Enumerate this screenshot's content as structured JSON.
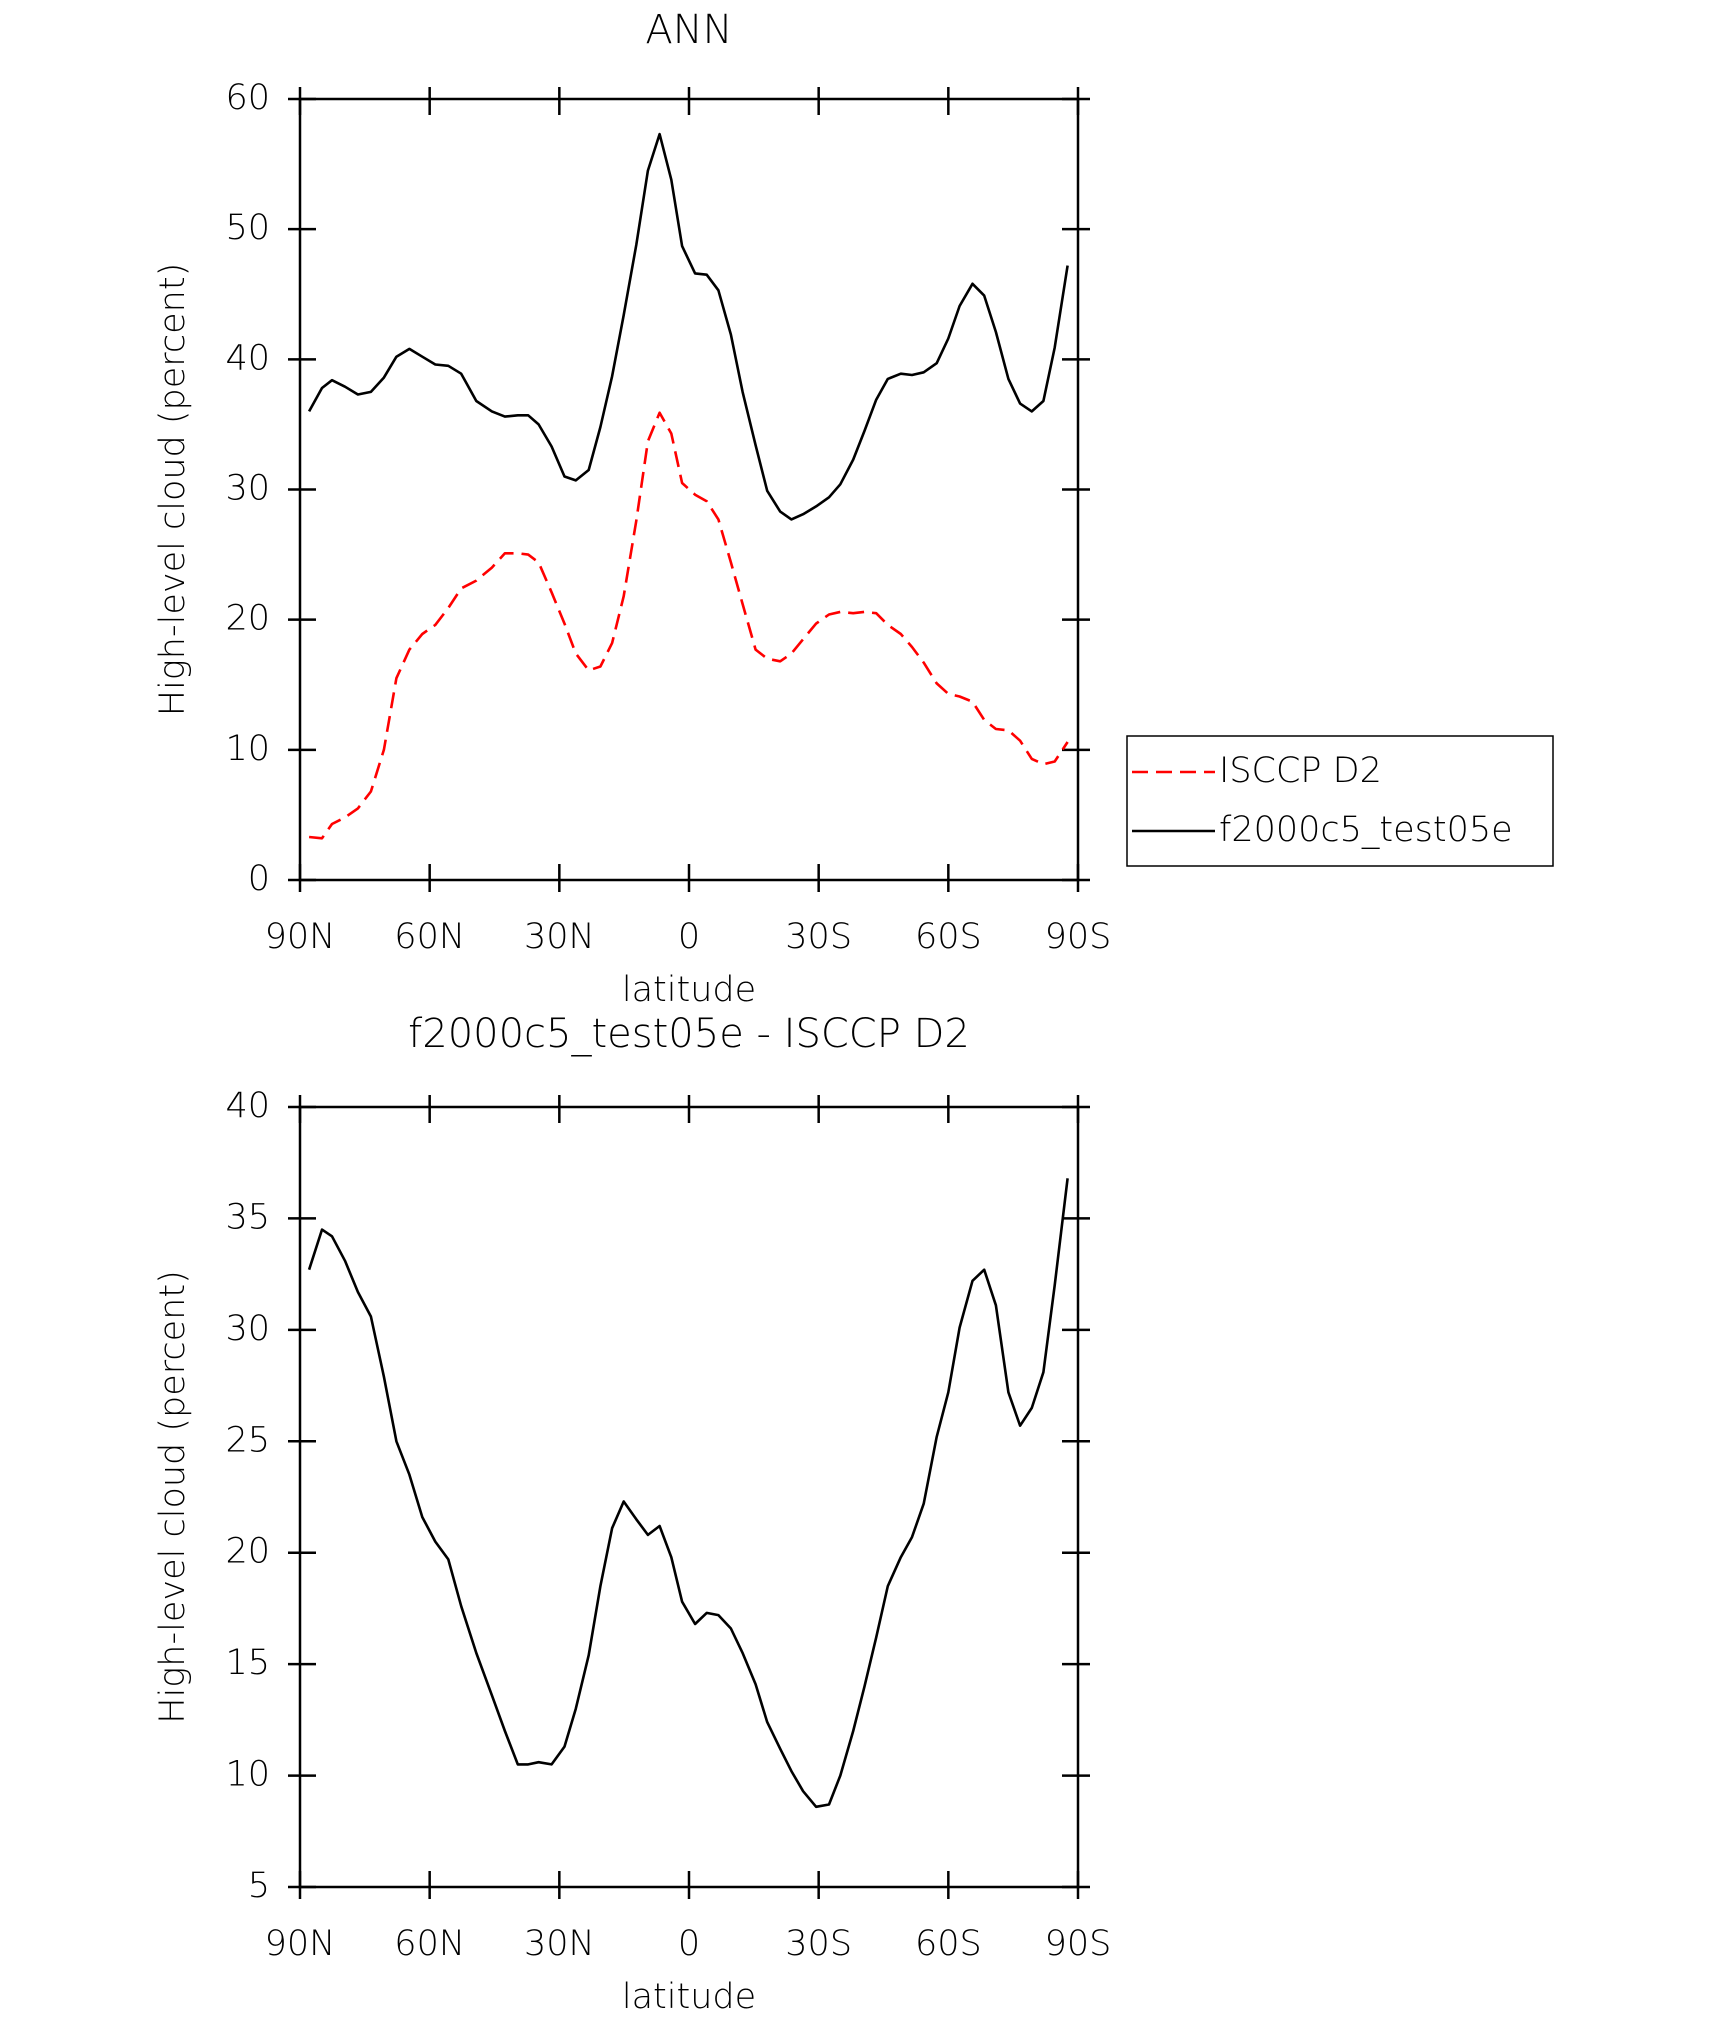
{
  "chart_data": [
    {
      "type": "line",
      "title": "ANN",
      "xlabel": "latitude",
      "ylabel": "High-level cloud (percent)",
      "x": [
        87.9,
        84.9,
        82.6,
        79.6,
        76.6,
        73.6,
        70.6,
        67.7,
        64.7,
        61.7,
        58.7,
        55.7,
        52.7,
        49.2,
        45.6,
        42.6,
        39.6,
        37.2,
        34.8,
        31.8,
        28.8,
        26.2,
        23.2,
        20.5,
        17.8,
        15.1,
        12.2,
        9.5,
        6.8,
        4.1,
        1.6,
        -1.4,
        -4.1,
        -6.8,
        -9.7,
        -12.4,
        -15.4,
        -18.1,
        -21.1,
        -23.7,
        -26.4,
        -29.4,
        -32.4,
        -35.0,
        -38.0,
        -40.6,
        -43.3,
        -46.0,
        -49.0,
        -51.6,
        -54.3,
        -57.3,
        -60.0,
        -62.6,
        -65.6,
        -68.3,
        -71.0,
        -73.9,
        -76.6,
        -79.3,
        -82.0,
        -84.6,
        -87.6
      ],
      "xlim": [
        90,
        -90
      ],
      "xticks": [
        {
          "value": 90,
          "label": "90N"
        },
        {
          "value": 60,
          "label": "60N"
        },
        {
          "value": 30,
          "label": "30N"
        },
        0,
        {
          "value": -30,
          "label": "30S"
        },
        {
          "value": -60,
          "label": "60S"
        },
        {
          "value": -90,
          "label": "90S"
        }
      ],
      "ylim": [
        0,
        60
      ],
      "yticks": [
        0,
        10,
        20,
        30,
        40,
        50,
        60
      ],
      "legend": "right",
      "series": [
        {
          "name": "ISCCP D2",
          "color": "#ff0000",
          "line_style": "dashed",
          "values": [
            3.3,
            3.2,
            4.3,
            4.8,
            5.5,
            6.8,
            10.0,
            15.5,
            17.7,
            18.9,
            19.6,
            20.9,
            22.4,
            23.0,
            24.0,
            25.1,
            25.1,
            25.0,
            24.4,
            22.1,
            19.7,
            17.4,
            16.1,
            16.4,
            18.2,
            21.8,
            27.6,
            33.7,
            35.9,
            34.3,
            30.5,
            29.6,
            29.1,
            27.7,
            24.4,
            21.2,
            17.7,
            17.0,
            16.8,
            17.4,
            18.5,
            19.7,
            20.4,
            20.6,
            20.5,
            20.6,
            20.5,
            19.6,
            18.9,
            17.9,
            16.7,
            15.1,
            14.3,
            14.1,
            13.7,
            12.3,
            11.6,
            11.5,
            10.7,
            9.3,
            8.9,
            9.1,
            10.6
          ]
        },
        {
          "name": "f2000c5_test05e",
          "color": "#000000",
          "line_style": "solid",
          "values": [
            36.0,
            37.8,
            38.4,
            37.9,
            37.3,
            37.5,
            38.6,
            40.2,
            40.8,
            40.2,
            39.6,
            39.5,
            38.9,
            36.8,
            36.0,
            35.6,
            35.7,
            35.7,
            35.0,
            33.3,
            31.0,
            30.7,
            31.5,
            34.8,
            38.7,
            43.4,
            48.8,
            54.5,
            57.3,
            53.8,
            48.7,
            46.6,
            46.5,
            45.3,
            41.9,
            37.5,
            33.4,
            29.9,
            28.3,
            27.7,
            28.1,
            28.7,
            29.4,
            30.4,
            32.3,
            34.5,
            36.9,
            38.5,
            38.9,
            38.8,
            39.0,
            39.7,
            41.6,
            44.1,
            45.8,
            44.9,
            42.1,
            38.5,
            36.6,
            36.0,
            36.8,
            40.9,
            47.2
          ]
        }
      ]
    },
    {
      "type": "line",
      "title": "f2000c5_test05e - ISCCP D2",
      "xlabel": "latitude",
      "ylabel": "High-level cloud (percent)",
      "x": [
        87.9,
        84.9,
        82.6,
        79.6,
        76.6,
        73.6,
        70.6,
        67.7,
        64.7,
        61.7,
        58.7,
        55.7,
        52.7,
        49.2,
        45.6,
        42.6,
        39.6,
        37.2,
        34.8,
        31.8,
        28.8,
        26.2,
        23.2,
        20.5,
        17.8,
        15.1,
        12.2,
        9.5,
        6.8,
        4.1,
        1.6,
        -1.4,
        -4.1,
        -6.8,
        -9.7,
        -12.4,
        -15.4,
        -18.1,
        -21.1,
        -23.7,
        -26.4,
        -29.4,
        -32.4,
        -35.0,
        -38.0,
        -40.6,
        -43.3,
        -46.0,
        -49.0,
        -51.6,
        -54.3,
        -57.3,
        -60.0,
        -62.6,
        -65.6,
        -68.3,
        -71.0,
        -73.9,
        -76.6,
        -79.3,
        -82.0,
        -84.6,
        -87.6
      ],
      "xlim": [
        90,
        -90
      ],
      "xticks": [
        {
          "value": 90,
          "label": "90N"
        },
        {
          "value": 60,
          "label": "60N"
        },
        {
          "value": 30,
          "label": "30N"
        },
        0,
        {
          "value": -30,
          "label": "30S"
        },
        {
          "value": -60,
          "label": "60S"
        },
        {
          "value": -90,
          "label": "90S"
        }
      ],
      "ylim": [
        5,
        40
      ],
      "yticks": [
        5,
        10,
        15,
        20,
        25,
        30,
        35,
        40
      ],
      "series": [
        {
          "color": "#000000",
          "line_style": "solid",
          "values": [
            32.7,
            34.5,
            34.2,
            33.1,
            31.7,
            30.6,
            27.9,
            25.0,
            23.5,
            21.6,
            20.5,
            19.7,
            17.6,
            15.5,
            13.6,
            12.0,
            10.5,
            10.5,
            10.6,
            10.5,
            11.3,
            13.0,
            15.4,
            18.5,
            21.1,
            22.3,
            21.5,
            20.8,
            21.2,
            19.8,
            17.8,
            16.8,
            17.3,
            17.2,
            16.6,
            15.5,
            14.1,
            12.4,
            11.2,
            10.2,
            9.3,
            8.6,
            8.7,
            10.0,
            12.0,
            14.0,
            16.2,
            18.5,
            19.8,
            20.7,
            22.2,
            25.2,
            27.2,
            30.1,
            32.2,
            32.7,
            31.1,
            27.2,
            25.7,
            26.5,
            28.1,
            32.0,
            36.8
          ]
        }
      ]
    }
  ]
}
